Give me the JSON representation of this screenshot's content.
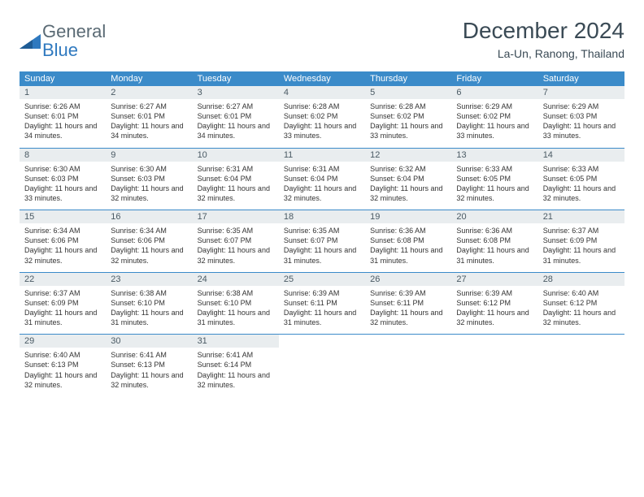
{
  "colors": {
    "header_bg": "#3b8bc9",
    "header_text": "#ffffff",
    "daynum_bg": "#e9edef",
    "row_border": "#3b8bc9",
    "title_color": "#3a4a55",
    "logo_gray": "#5a6a74",
    "logo_blue": "#2f79bf",
    "body_text": "#333333",
    "background": "#ffffff"
  },
  "typography": {
    "title_fontsize": 28,
    "subtitle_fontsize": 14,
    "dayhead_fontsize": 11,
    "daynum_fontsize": 11,
    "daytext_fontsize": 9,
    "logo_fontsize": 22
  },
  "logo": {
    "word1": "General",
    "word2": "Blue"
  },
  "title": "December 2024",
  "subtitle": "La-Un, Ranong, Thailand",
  "dayNames": [
    "Sunday",
    "Monday",
    "Tuesday",
    "Wednesday",
    "Thursday",
    "Friday",
    "Saturday"
  ],
  "weeks": [
    [
      {
        "num": "1",
        "sunrise": "6:26 AM",
        "sunset": "6:01 PM",
        "daylight": "11 hours and 34 minutes."
      },
      {
        "num": "2",
        "sunrise": "6:27 AM",
        "sunset": "6:01 PM",
        "daylight": "11 hours and 34 minutes."
      },
      {
        "num": "3",
        "sunrise": "6:27 AM",
        "sunset": "6:01 PM",
        "daylight": "11 hours and 34 minutes."
      },
      {
        "num": "4",
        "sunrise": "6:28 AM",
        "sunset": "6:02 PM",
        "daylight": "11 hours and 33 minutes."
      },
      {
        "num": "5",
        "sunrise": "6:28 AM",
        "sunset": "6:02 PM",
        "daylight": "11 hours and 33 minutes."
      },
      {
        "num": "6",
        "sunrise": "6:29 AM",
        "sunset": "6:02 PM",
        "daylight": "11 hours and 33 minutes."
      },
      {
        "num": "7",
        "sunrise": "6:29 AM",
        "sunset": "6:03 PM",
        "daylight": "11 hours and 33 minutes."
      }
    ],
    [
      {
        "num": "8",
        "sunrise": "6:30 AM",
        "sunset": "6:03 PM",
        "daylight": "11 hours and 33 minutes."
      },
      {
        "num": "9",
        "sunrise": "6:30 AM",
        "sunset": "6:03 PM",
        "daylight": "11 hours and 32 minutes."
      },
      {
        "num": "10",
        "sunrise": "6:31 AM",
        "sunset": "6:04 PM",
        "daylight": "11 hours and 32 minutes."
      },
      {
        "num": "11",
        "sunrise": "6:31 AM",
        "sunset": "6:04 PM",
        "daylight": "11 hours and 32 minutes."
      },
      {
        "num": "12",
        "sunrise": "6:32 AM",
        "sunset": "6:04 PM",
        "daylight": "11 hours and 32 minutes."
      },
      {
        "num": "13",
        "sunrise": "6:33 AM",
        "sunset": "6:05 PM",
        "daylight": "11 hours and 32 minutes."
      },
      {
        "num": "14",
        "sunrise": "6:33 AM",
        "sunset": "6:05 PM",
        "daylight": "11 hours and 32 minutes."
      }
    ],
    [
      {
        "num": "15",
        "sunrise": "6:34 AM",
        "sunset": "6:06 PM",
        "daylight": "11 hours and 32 minutes."
      },
      {
        "num": "16",
        "sunrise": "6:34 AM",
        "sunset": "6:06 PM",
        "daylight": "11 hours and 32 minutes."
      },
      {
        "num": "17",
        "sunrise": "6:35 AM",
        "sunset": "6:07 PM",
        "daylight": "11 hours and 32 minutes."
      },
      {
        "num": "18",
        "sunrise": "6:35 AM",
        "sunset": "6:07 PM",
        "daylight": "11 hours and 31 minutes."
      },
      {
        "num": "19",
        "sunrise": "6:36 AM",
        "sunset": "6:08 PM",
        "daylight": "11 hours and 31 minutes."
      },
      {
        "num": "20",
        "sunrise": "6:36 AM",
        "sunset": "6:08 PM",
        "daylight": "11 hours and 31 minutes."
      },
      {
        "num": "21",
        "sunrise": "6:37 AM",
        "sunset": "6:09 PM",
        "daylight": "11 hours and 31 minutes."
      }
    ],
    [
      {
        "num": "22",
        "sunrise": "6:37 AM",
        "sunset": "6:09 PM",
        "daylight": "11 hours and 31 minutes."
      },
      {
        "num": "23",
        "sunrise": "6:38 AM",
        "sunset": "6:10 PM",
        "daylight": "11 hours and 31 minutes."
      },
      {
        "num": "24",
        "sunrise": "6:38 AM",
        "sunset": "6:10 PM",
        "daylight": "11 hours and 31 minutes."
      },
      {
        "num": "25",
        "sunrise": "6:39 AM",
        "sunset": "6:11 PM",
        "daylight": "11 hours and 31 minutes."
      },
      {
        "num": "26",
        "sunrise": "6:39 AM",
        "sunset": "6:11 PM",
        "daylight": "11 hours and 32 minutes."
      },
      {
        "num": "27",
        "sunrise": "6:39 AM",
        "sunset": "6:12 PM",
        "daylight": "11 hours and 32 minutes."
      },
      {
        "num": "28",
        "sunrise": "6:40 AM",
        "sunset": "6:12 PM",
        "daylight": "11 hours and 32 minutes."
      }
    ],
    [
      {
        "num": "29",
        "sunrise": "6:40 AM",
        "sunset": "6:13 PM",
        "daylight": "11 hours and 32 minutes."
      },
      {
        "num": "30",
        "sunrise": "6:41 AM",
        "sunset": "6:13 PM",
        "daylight": "11 hours and 32 minutes."
      },
      {
        "num": "31",
        "sunrise": "6:41 AM",
        "sunset": "6:14 PM",
        "daylight": "11 hours and 32 minutes."
      },
      null,
      null,
      null,
      null
    ]
  ],
  "labels": {
    "sunrise": "Sunrise:",
    "sunset": "Sunset:",
    "daylight": "Daylight:"
  }
}
